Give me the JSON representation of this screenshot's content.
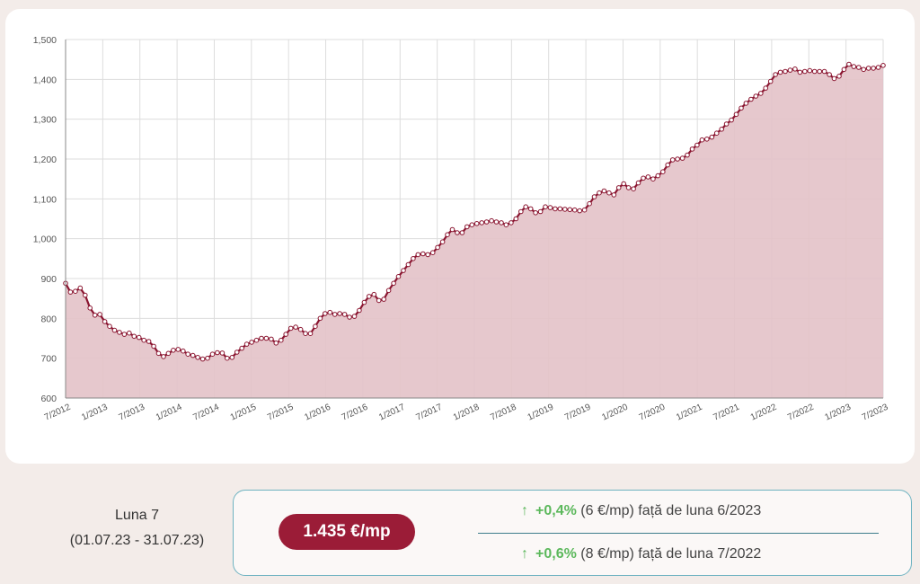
{
  "chart_data": {
    "type": "area",
    "title": "",
    "xlabel": "",
    "ylabel": "",
    "ylim": [
      600,
      1500
    ],
    "yticks": [
      "1,500",
      "1,400",
      "1,300",
      "1,200",
      "1,100",
      "1,000",
      "900",
      "800",
      "700",
      "600"
    ],
    "ytick_values": [
      1500,
      1400,
      1300,
      1200,
      1100,
      1000,
      900,
      800,
      700,
      600
    ],
    "xticks": [
      "7/2012",
      "1/2013",
      "7/2013",
      "1/2014",
      "7/2014",
      "1/2015",
      "7/2015",
      "1/2016",
      "7/2016",
      "1/2017",
      "7/2017",
      "1/2018",
      "7/2018",
      "1/2019",
      "7/2019",
      "1/2020",
      "7/2020",
      "1/2021",
      "7/2021",
      "1/2022",
      "7/2022",
      "1/2023",
      "7/2023"
    ],
    "x_start": "7/2012",
    "x_end": "7/2023",
    "grid": true,
    "colors": {
      "line": "#8a1530",
      "fill": "#e3c2c8",
      "marker_fill": "#ffffff"
    },
    "values": [
      888,
      866,
      868,
      876,
      858,
      826,
      808,
      810,
      792,
      780,
      770,
      765,
      760,
      763,
      755,
      752,
      745,
      742,
      730,
      712,
      704,
      712,
      720,
      722,
      718,
      710,
      707,
      702,
      698,
      700,
      710,
      714,
      713,
      700,
      702,
      715,
      725,
      735,
      740,
      745,
      750,
      750,
      748,
      738,
      745,
      760,
      775,
      778,
      772,
      762,
      762,
      780,
      800,
      812,
      815,
      810,
      812,
      810,
      803,
      805,
      820,
      840,
      855,
      860,
      845,
      848,
      870,
      888,
      905,
      920,
      935,
      950,
      960,
      962,
      960,
      965,
      978,
      992,
      1010,
      1023,
      1015,
      1015,
      1030,
      1035,
      1038,
      1040,
      1042,
      1045,
      1042,
      1040,
      1035,
      1040,
      1050,
      1068,
      1080,
      1075,
      1065,
      1068,
      1080,
      1078,
      1075,
      1075,
      1074,
      1073,
      1072,
      1070,
      1072,
      1088,
      1105,
      1115,
      1120,
      1115,
      1110,
      1128,
      1138,
      1128,
      1125,
      1140,
      1152,
      1155,
      1150,
      1158,
      1168,
      1185,
      1198,
      1200,
      1202,
      1210,
      1225,
      1235,
      1248,
      1250,
      1255,
      1265,
      1275,
      1288,
      1298,
      1312,
      1328,
      1340,
      1350,
      1358,
      1365,
      1378,
      1395,
      1412,
      1418,
      1420,
      1423,
      1426,
      1418,
      1420,
      1422,
      1420,
      1420,
      1420,
      1412,
      1402,
      1408,
      1425,
      1438,
      1432,
      1430,
      1425,
      1428,
      1428,
      1430,
      1435
    ]
  },
  "period": {
    "title": "Luna 7",
    "range": "(01.07.23 - 31.07.23)"
  },
  "price": "1.435 €/mp",
  "changes": [
    {
      "arrow": "↑",
      "pct": "+0,4%",
      "abs": "(6 €/mp)",
      "text": "față de luna 6/2023"
    },
    {
      "arrow": "↑",
      "pct": "+0,6%",
      "abs": "(8 €/mp)",
      "text": "față de luna 7/2022"
    }
  ]
}
